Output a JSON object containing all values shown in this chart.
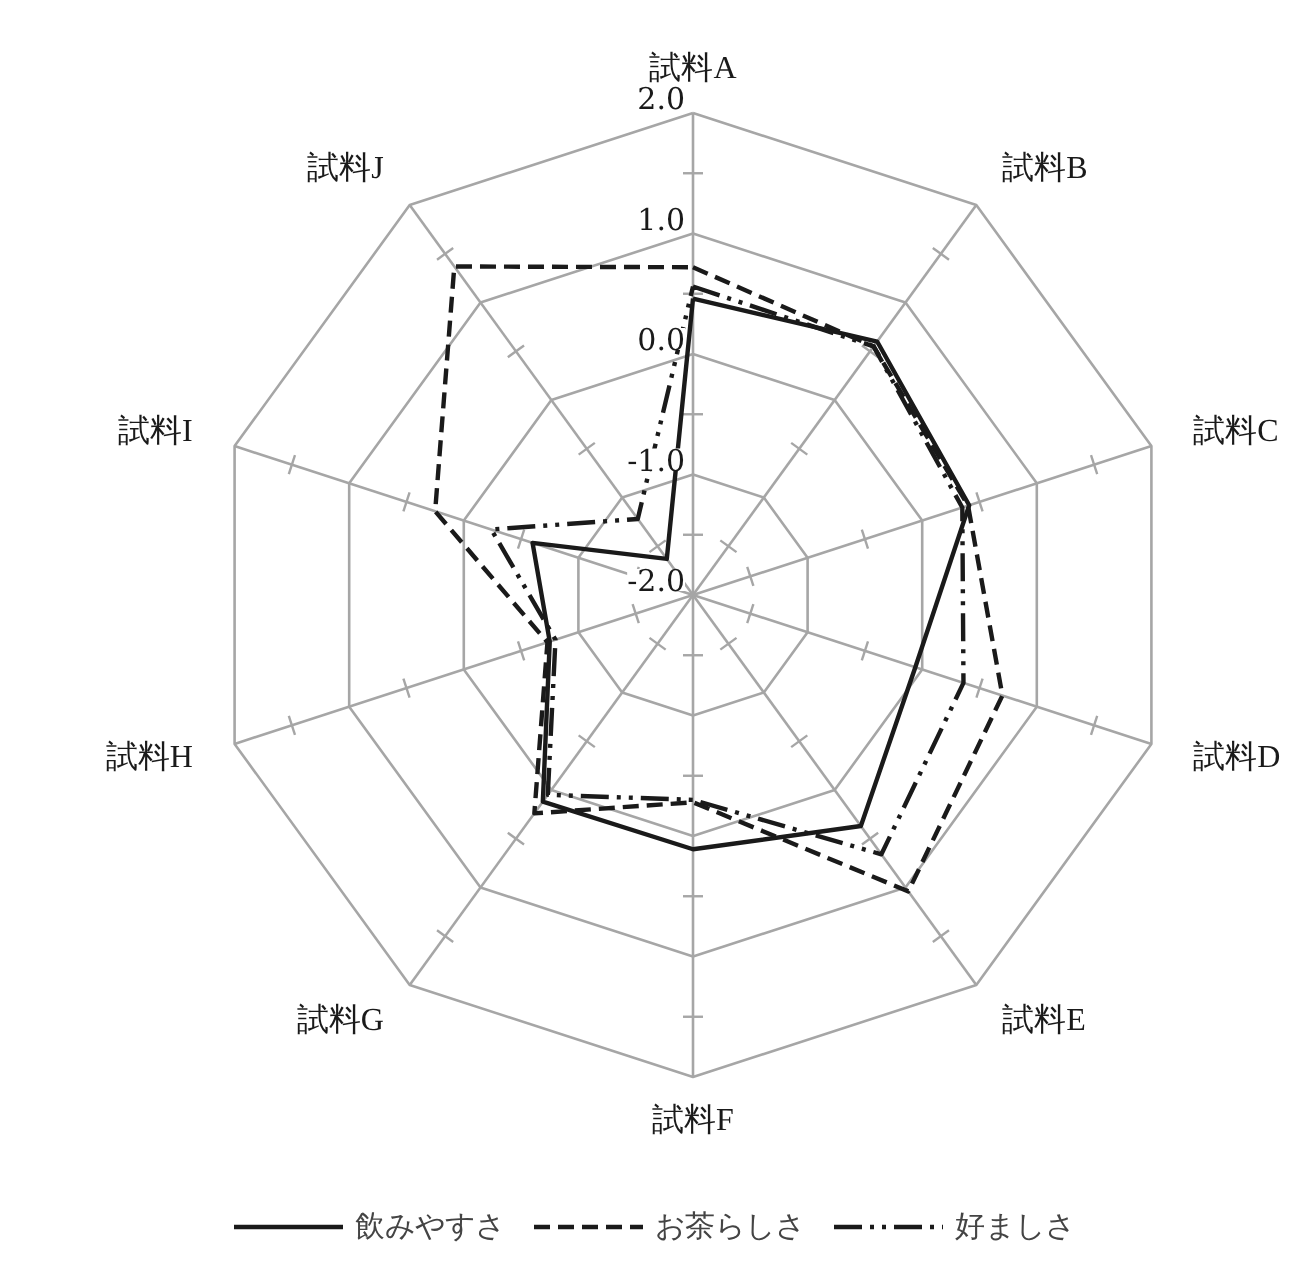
{
  "chart_data": {
    "type": "radar",
    "categories": [
      "試料A",
      "試料B",
      "試料C",
      "試料D",
      "試料E",
      "試料F",
      "試料G",
      "試料H",
      "試料I",
      "試料J"
    ],
    "ylim": [
      -2.0,
      2.0
    ],
    "yticks": [
      {
        "value": -2,
        "label": "-2.0"
      },
      {
        "value": -1,
        "label": "-1.0"
      },
      {
        "value": 0,
        "label": "0.0"
      },
      {
        "value": 1,
        "label": "1.0"
      },
      {
        "value": 2,
        "label": "2.0"
      }
    ],
    "legend": "bottom",
    "grid": true,
    "series": [
      {
        "name": "飲みやすさ",
        "color": "#1a1a1a",
        "line_style": "solid",
        "values": [
          0.46,
          0.6,
          0.41,
          -0.06,
          0.37,
          0.11,
          0.12,
          -0.75,
          -0.6,
          -1.63
        ]
      },
      {
        "name": "お茶らしさ",
        "color": "#1a1a1a",
        "line_style": "dashed",
        "values": [
          0.72,
          0.55,
          0.4,
          0.7,
          1.04,
          -0.28,
          0.24,
          -0.73,
          0.25,
          1.37
        ]
      },
      {
        "name": "好ましさ",
        "color": "#1a1a1a",
        "line_style": "dashdot",
        "values": [
          0.56,
          0.55,
          0.35,
          0.36,
          0.66,
          -0.3,
          0.05,
          -0.8,
          -0.24,
          -1.22
        ]
      }
    ]
  }
}
